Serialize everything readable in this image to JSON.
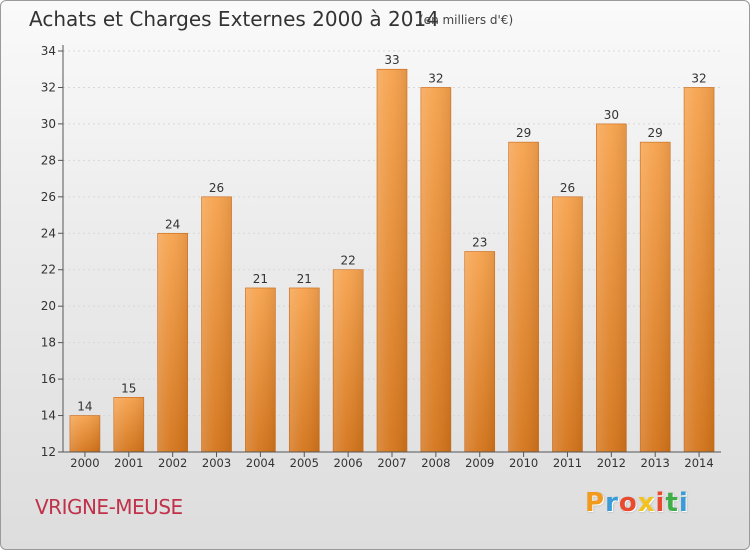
{
  "header": {
    "title": "Achats et Charges Externes 2000 à 2014",
    "subtitle": "(en milliers d'€)"
  },
  "footer": {
    "commune": "VRIGNE-MEUSE",
    "logo_letters": [
      "P",
      "r",
      "o",
      "x",
      "i",
      "t",
      "i"
    ],
    "logo_colors": [
      "#f29a1e",
      "#3a9bd6",
      "#e84a2f",
      "#f2c21e",
      "#e84a2f",
      "#3fae49",
      "#3a9bd6"
    ]
  },
  "colors": {
    "bar_top": "#f6a24c",
    "bar_bottom": "#d4741a",
    "axis": "#555555",
    "grid": "#d8d8d8",
    "label": "#333333"
  },
  "chart_data": {
    "type": "bar",
    "title": "Achats et Charges Externes 2000 à 2014",
    "subtitle": "(en milliers d'€)",
    "xlabel": "",
    "ylabel": "",
    "categories": [
      "2000",
      "2001",
      "2002",
      "2003",
      "2004",
      "2005",
      "2006",
      "2007",
      "2008",
      "2009",
      "2010",
      "2011",
      "2012",
      "2013",
      "2014"
    ],
    "values": [
      14,
      15,
      24,
      26,
      21,
      21,
      22,
      33,
      32,
      23,
      29,
      26,
      30,
      29,
      32
    ],
    "ylim": [
      12,
      34
    ],
    "yticks": [
      12,
      14,
      16,
      18,
      20,
      22,
      24,
      26,
      28,
      30,
      32,
      34
    ],
    "grid": true,
    "data_labels": true
  }
}
